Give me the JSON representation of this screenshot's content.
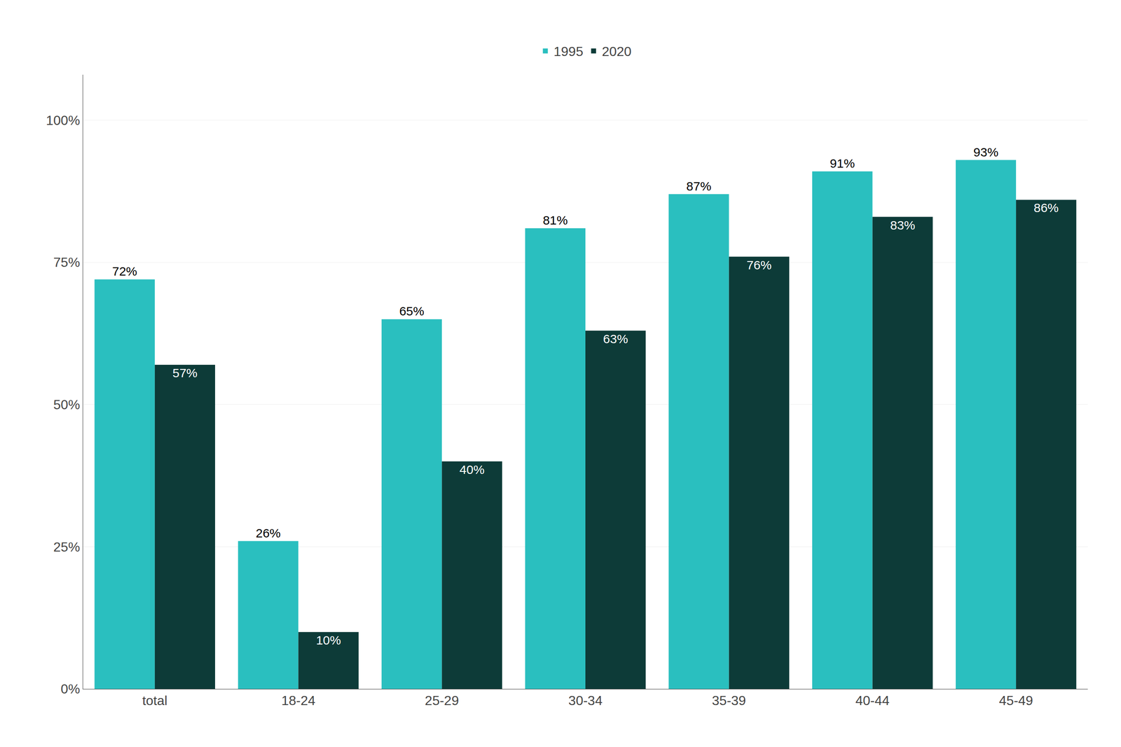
{
  "chart_data": {
    "type": "bar",
    "categories": [
      "total",
      "18-24",
      "25-29",
      "30-34",
      "35-39",
      "40-44",
      "45-49"
    ],
    "series": [
      {
        "name": "1995",
        "color": "#2abfbf",
        "values": [
          72,
          26,
          65,
          81,
          87,
          91,
          93
        ],
        "value_labels": [
          "72%",
          "26%",
          "65%",
          "81%",
          "87%",
          "91%",
          "93%"
        ]
      },
      {
        "name": "2020",
        "color": "#0d3b38",
        "values": [
          57,
          10,
          40,
          63,
          76,
          83,
          86
        ],
        "value_labels": [
          "57%",
          "10%",
          "40%",
          "63%",
          "76%",
          "83%",
          "86%"
        ]
      }
    ],
    "ylim": [
      0,
      108
    ],
    "yticks": [
      {
        "value": 0,
        "label": "0%"
      },
      {
        "value": 25,
        "label": "25%"
      },
      {
        "value": 50,
        "label": "50%"
      },
      {
        "value": 75,
        "label": "75%"
      },
      {
        "value": 100,
        "label": "100%"
      }
    ],
    "grid": true,
    "legend": "top",
    "data_labels": true
  }
}
